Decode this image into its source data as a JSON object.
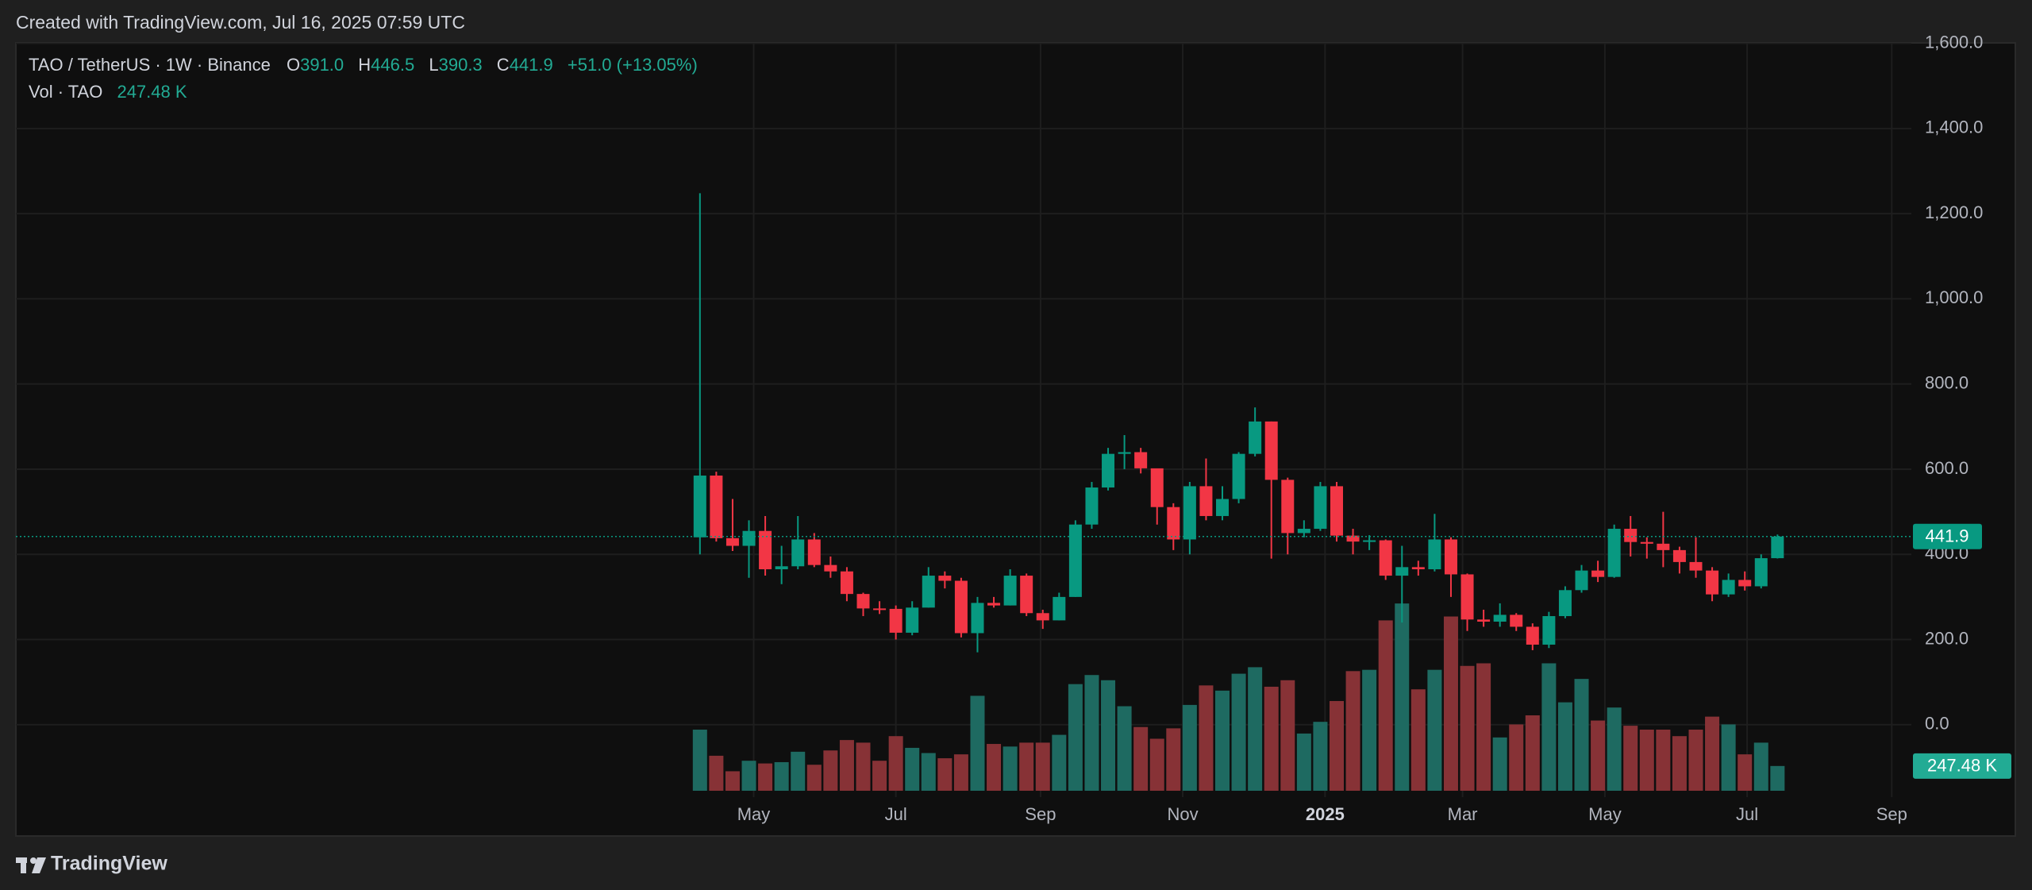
{
  "header": {
    "title": "Created with TradingView.com, Jul 16, 2025 07:59 UTC"
  },
  "footer": {
    "brand": "TradingView"
  },
  "chart_data": {
    "type": "candlestick",
    "symbol": "TAO / TetherUS · 1W · Binance",
    "legend": {
      "open": {
        "label": "O",
        "value": "391.0"
      },
      "high": {
        "label": "H",
        "value": "446.5"
      },
      "low": {
        "label": "L",
        "value": "390.3"
      },
      "close": {
        "label": "C",
        "value": "441.9"
      },
      "change": "+51.0 (+13.05%)"
    },
    "volume_legend": {
      "name": "Vol · TAO",
      "value": "247.48 K"
    },
    "last_price_label": "441.9",
    "last_volume_label": "247.48 K",
    "up_color": "#089981",
    "down_color": "#f23645",
    "volume_up_color": "#1e6a61",
    "volume_down_color": "#873236",
    "open": [
      440,
      585,
      438,
      420,
      455,
      365,
      372,
      435,
      375,
      360,
      307,
      273,
      272,
      216,
      275,
      350,
      338,
      215,
      286,
      280,
      350,
      262,
      245,
      300,
      470,
      557,
      636,
      640,
      602,
      511,
      435,
      560,
      490,
      530,
      636,
      712,
      575,
      450,
      460,
      560,
      444,
      430,
      433,
      350,
      370,
      365,
      435,
      353,
      247,
      242,
      258,
      230,
      188,
      255,
      316,
      362,
      347,
      460,
      429,
      425,
      410,
      382,
      362,
      306,
      340,
      325,
      391
    ],
    "high": [
      1248,
      594,
      530,
      480,
      490,
      420,
      490,
      450,
      395,
      370,
      310,
      290,
      280,
      290,
      370,
      360,
      345,
      300,
      300,
      365,
      355,
      270,
      310,
      480,
      570,
      650,
      680,
      650,
      600,
      520,
      570,
      625,
      560,
      640,
      745,
      712,
      580,
      480,
      570,
      570,
      460,
      445,
      435,
      420,
      385,
      495,
      440,
      355,
      270,
      285,
      262,
      238,
      265,
      325,
      375,
      385,
      470,
      490,
      440,
      500,
      418,
      440,
      370,
      355,
      360,
      400,
      446.5
    ],
    "low": [
      400,
      430,
      408,
      345,
      350,
      330,
      365,
      370,
      345,
      290,
      255,
      260,
      200,
      210,
      275,
      320,
      205,
      170,
      275,
      280,
      255,
      225,
      245,
      300,
      460,
      550,
      600,
      590,
      470,
      410,
      400,
      480,
      480,
      520,
      630,
      390,
      400,
      440,
      455,
      430,
      400,
      410,
      340,
      240,
      350,
      360,
      300,
      220,
      230,
      230,
      220,
      175,
      180,
      250,
      310,
      335,
      345,
      395,
      390,
      370,
      355,
      345,
      290,
      300,
      315,
      320,
      390.3
    ],
    "close": [
      585,
      438,
      420,
      455,
      365,
      372,
      435,
      375,
      360,
      307,
      273,
      272,
      216,
      275,
      350,
      338,
      215,
      286,
      280,
      350,
      262,
      245,
      300,
      470,
      557,
      636,
      640,
      602,
      511,
      435,
      560,
      490,
      530,
      636,
      712,
      575,
      450,
      460,
      560,
      444,
      430,
      433,
      350,
      370,
      365,
      435,
      353,
      247,
      242,
      258,
      230,
      188,
      255,
      316,
      362,
      347,
      460,
      429,
      425,
      410,
      382,
      362,
      306,
      340,
      325,
      391,
      441.9
    ],
    "volume": [
      611,
      350,
      195,
      300,
      273,
      286,
      390,
      260,
      403,
      507,
      481,
      300,
      546,
      429,
      377,
      325,
      364,
      949,
      468,
      442,
      481,
      481,
      559,
      1066,
      1157,
      1105,
      845,
      637,
      520,
      624,
      858,
      1053,
      1001,
      1170,
      1235,
      1040,
      1105,
      572,
      689,
      897,
      1196,
      1209,
      1703,
      1872,
      1014,
      1209,
      1742,
      1248,
      1274,
      533,
      663,
      754,
      1274,
      884,
      1118,
      702,
      832,
      650,
      611,
      611,
      546,
      611,
      741,
      663,
      364,
      481,
      247.48
    ],
    "volume_ylim": [
      0,
      2000
    ],
    "xlim": [
      -41.9,
      74.2
    ],
    "xticks": [
      {
        "value": 3.29,
        "label": "May"
      },
      {
        "value": 12,
        "label": "Jul"
      },
      {
        "value": 20.86,
        "label": "Sep"
      },
      {
        "value": 29.57,
        "label": "Nov"
      },
      {
        "value": 38.29,
        "label": "2025"
      },
      {
        "value": 46.71,
        "label": "Mar"
      },
      {
        "value": 55.43,
        "label": "May"
      },
      {
        "value": 64.14,
        "label": "Jul"
      },
      {
        "value": 73,
        "label": "Sep"
      }
    ],
    "ylim": [
      -170,
      1601
    ],
    "yticks": [
      {
        "value": 0,
        "label": "0.0"
      },
      {
        "value": 200,
        "label": "200.0"
      },
      {
        "value": 400,
        "label": "400.0"
      },
      {
        "value": 600,
        "label": "600.0"
      },
      {
        "value": 800,
        "label": "800.0"
      },
      {
        "value": 1000,
        "label": "1,000.0"
      },
      {
        "value": 1200,
        "label": "1,200.0"
      },
      {
        "value": 1400,
        "label": "1,400.0"
      },
      {
        "value": 1600,
        "label": "1,600.0"
      }
    ],
    "grid": true
  }
}
